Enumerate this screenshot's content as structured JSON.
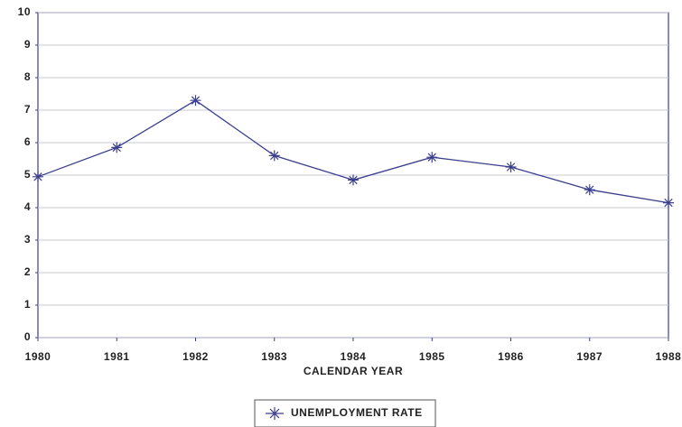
{
  "chart_data": {
    "type": "line",
    "x": [
      1980,
      1981,
      1982,
      1983,
      1984,
      1985,
      1986,
      1987,
      1988
    ],
    "xlim": [
      1980,
      1988
    ],
    "xticks": [
      1980,
      1981,
      1982,
      1983,
      1984,
      1985,
      1986,
      1987,
      1988
    ],
    "x_label": "CALENDAR YEAR",
    "series": [
      {
        "name": "UNEMPLOYMENT RATE",
        "color": "#3b3f8c",
        "values": [
          4.95,
          5.85,
          7.3,
          5.6,
          4.85,
          5.55,
          5.25,
          4.55,
          4.15
        ]
      }
    ],
    "ylim": [
      0,
      10
    ],
    "yticks": [
      0,
      1,
      2,
      3,
      4,
      5,
      6,
      7,
      8,
      9,
      10
    ],
    "grid": true
  }
}
